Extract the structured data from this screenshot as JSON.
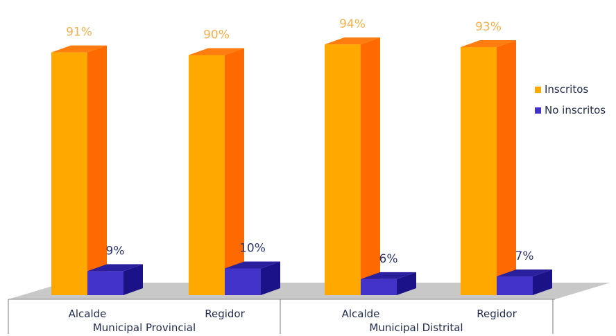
{
  "chart_data": {
    "type": "bar",
    "style": "3d-clustered-column",
    "categories": [
      "Alcalde",
      "Regidor",
      "Alcalde",
      "Regidor"
    ],
    "groups": [
      {
        "label": "Municipal Provincial",
        "categories": [
          "Alcalde",
          "Regidor"
        ]
      },
      {
        "label": "Municipal Distrital",
        "categories": [
          "Alcalde",
          "Regidor"
        ]
      }
    ],
    "series": [
      {
        "name": "Inscritos",
        "values": [
          91,
          90,
          94,
          93
        ],
        "labels": [
          "91%",
          "90%",
          "94%",
          "93%"
        ],
        "color": "#ffa800",
        "side_color": "#ff6a00",
        "top_color": "#ff7d10",
        "label_color": "#f5b04a"
      },
      {
        "name": "No inscritos",
        "values": [
          9,
          10,
          6,
          7
        ],
        "labels": [
          "9%",
          "10%",
          "6%",
          "7%"
        ],
        "color": "#4433c9",
        "side_color": "#1c1287",
        "top_color": "#2a1f9c",
        "label_color": "#2c3670"
      }
    ],
    "ylim": [
      0,
      100
    ],
    "grid": false,
    "legend_position": "right",
    "floor_color": "#c8c8c8"
  }
}
